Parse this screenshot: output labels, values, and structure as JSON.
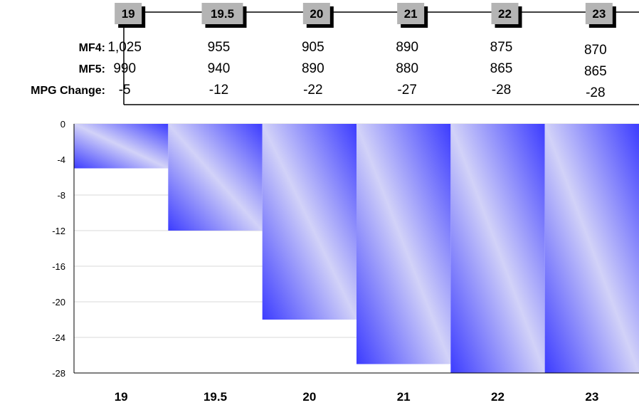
{
  "table": {
    "row_labels": [
      "MF4:",
      "MF5:",
      "MPG Change:"
    ],
    "rows": [
      [
        "1,025",
        "955",
        "905",
        "890",
        "875",
        "870"
      ],
      [
        "990",
        "940",
        "890",
        "880",
        "865",
        "865"
      ],
      [
        "-5",
        "-12",
        "-22",
        "-27",
        "-28",
        "-28"
      ]
    ]
  },
  "chart_data": {
    "type": "bar",
    "categories": [
      "19",
      "19.5",
      "20",
      "21",
      "22",
      "23"
    ],
    "values": [
      -5,
      -12,
      -22,
      -27,
      -28,
      -28
    ],
    "ylim": [
      -28,
      0
    ],
    "yticks": [
      0,
      -4,
      -8,
      -12,
      -16,
      -20,
      -24,
      -28
    ],
    "grid": true,
    "colors": {
      "bar_dark": "#3c3cff",
      "bar_light": "#d2d2f8",
      "tab_fill": "#b4b4b4",
      "grid": "#d9d9d9"
    }
  }
}
